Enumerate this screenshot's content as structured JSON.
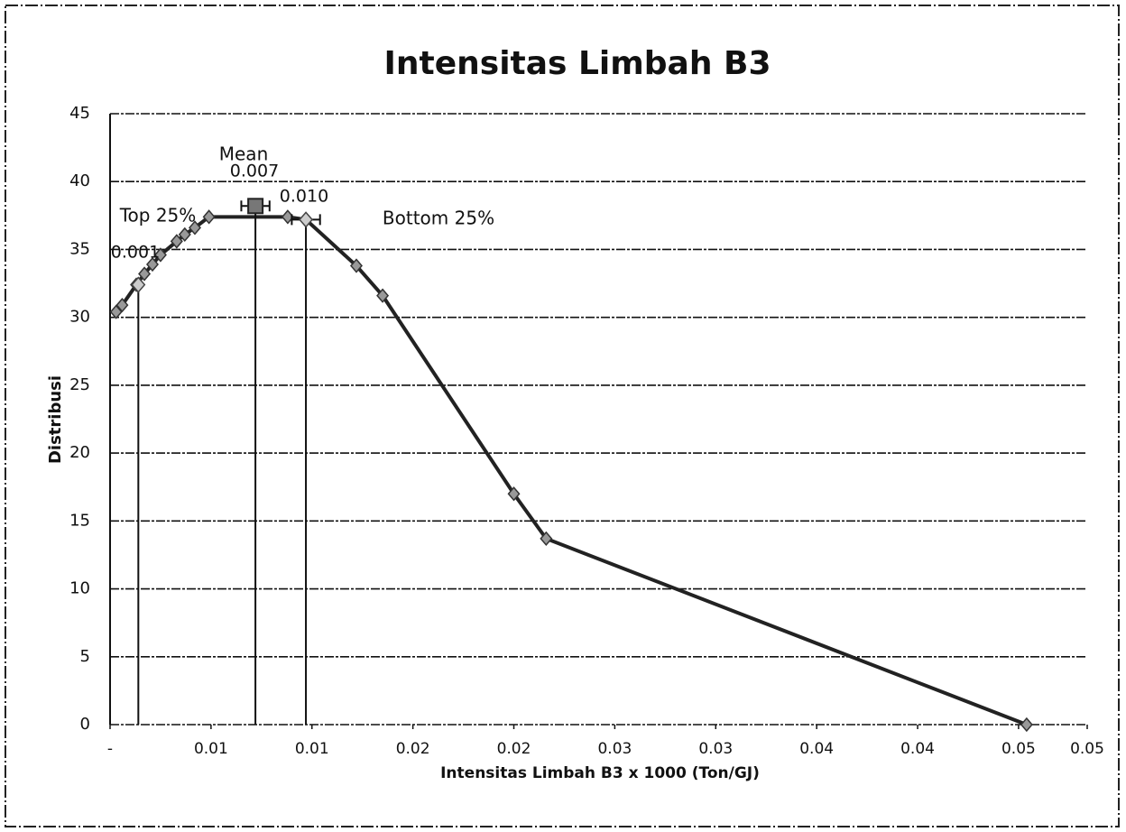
{
  "chart_data": {
    "type": "line",
    "title": "Intensitas Limbah B3",
    "xlabel": "Intensitas Limbah B3 x 1000 (Ton/GJ)",
    "ylabel": "Distribusi",
    "xlim": [
      0,
      0.0484
    ],
    "xticks": [
      {
        "value": 0,
        "label": "-"
      },
      {
        "value": 0.005,
        "label": "0.01"
      },
      0.01,
      {
        "value": 0.015,
        "label": "0.02"
      },
      0.02,
      {
        "value": 0.025,
        "label": "0.03"
      },
      0.03,
      {
        "value": 0.035,
        "label": "0.04"
      },
      0.04,
      {
        "value": 0.045,
        "label": "0.05"
      },
      {
        "value": 0.0484,
        "label": "0.05"
      }
    ],
    "ylim": [
      0,
      45
    ],
    "yticks": [
      0,
      5,
      10,
      15,
      20,
      25,
      30,
      35,
      40,
      45
    ],
    "grid": true,
    "series": [
      {
        "color": "#222222",
        "x": [
          0.0003,
          0.0006,
          0.0013,
          0.0017,
          0.0021,
          0.0025,
          0.0033,
          0.0037,
          0.0042,
          0.0049,
          0.0088,
          0.0097,
          0.0122,
          0.0135,
          0.02,
          0.0216,
          0.0454
        ],
        "values": [
          30.4,
          30.9,
          32.4,
          33.2,
          33.9,
          34.6,
          35.6,
          36.1,
          36.6,
          37.4,
          37.4,
          37.2,
          33.8,
          31.6,
          17.0,
          13.7,
          0
        ]
      }
    ],
    "markers": [
      {
        "label": "Top 25%",
        "x": 0.0014,
        "y": 32.4,
        "value_label": "0.001"
      },
      {
        "label": "Mean",
        "x": 0.0072,
        "y": 38.2,
        "value_label": "0.007",
        "xerr": 0.0007
      },
      {
        "label": "Bottom 25%",
        "x": 0.0097,
        "y": 37.2,
        "value_label": "0.010",
        "xerr": 0.0007
      }
    ]
  }
}
